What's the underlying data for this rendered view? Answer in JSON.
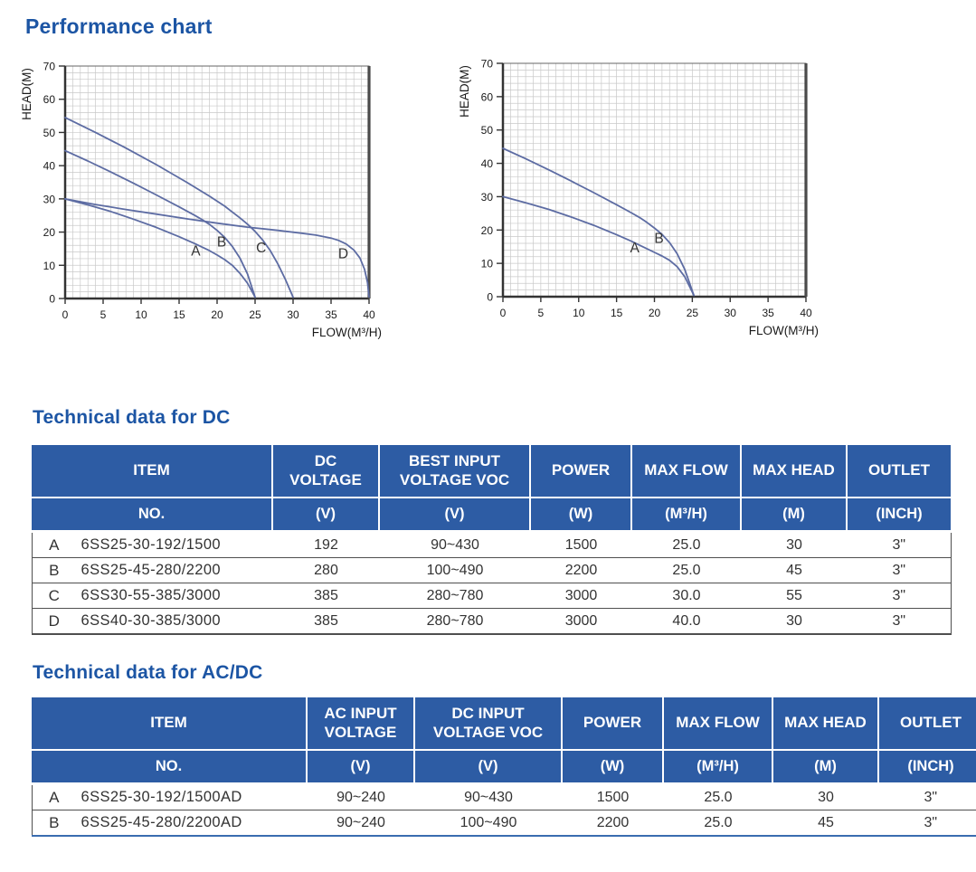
{
  "page": {
    "title": "Performance chart"
  },
  "colors": {
    "accent_blue": "#1c55a4",
    "table_header_blue": "#2d5ca4",
    "curve_blue": "#5d6ca3",
    "grid_gray": "#c9c9c9",
    "axis_dark": "#3a3a3a",
    "acdc_bottom_border": "#3a6cb0"
  },
  "chart_data": [
    {
      "type": "line",
      "title": "",
      "xlabel": "FLOW(M³/H)",
      "ylabel": "HEAD(M)",
      "xlim": [
        0,
        40
      ],
      "ylim": [
        0,
        70
      ],
      "xticks": [
        0,
        5,
        10,
        15,
        20,
        25,
        30,
        35,
        40
      ],
      "yticks": [
        0,
        10,
        20,
        30,
        40,
        50,
        60,
        70
      ],
      "grid": true,
      "minor_x_step": 1,
      "minor_y_step": 2,
      "series": [
        {
          "name": "A",
          "points": [
            [
              0,
              30
            ],
            [
              3,
              28.2
            ],
            [
              6,
              26.2
            ],
            [
              9,
              23.9
            ],
            [
              12,
              21.4
            ],
            [
              15,
              18.6
            ],
            [
              17,
              16.6
            ],
            [
              18,
              15.5
            ],
            [
              19,
              14.4
            ],
            [
              20,
              13.1
            ],
            [
              21,
              11.7
            ],
            [
              22,
              10
            ],
            [
              23,
              7.6
            ],
            [
              24,
              4.6
            ],
            [
              25,
              0.4
            ]
          ]
        },
        {
          "name": "B",
          "points": [
            [
              0,
              44.5
            ],
            [
              3,
              41.4
            ],
            [
              6,
              38.1
            ],
            [
              9,
              34.7
            ],
            [
              12,
              31.2
            ],
            [
              15,
              27.6
            ],
            [
              17,
              25.1
            ],
            [
              18,
              23.8
            ],
            [
              19,
              22.3
            ],
            [
              20,
              20.5
            ],
            [
              21,
              18.4
            ],
            [
              22,
              15.7
            ],
            [
              23,
              12.2
            ],
            [
              24,
              7.4
            ],
            [
              25,
              0.4
            ]
          ]
        },
        {
          "name": "C",
          "points": [
            [
              0,
              54.5
            ],
            [
              4,
              50
            ],
            [
              8,
              45.3
            ],
            [
              12,
              40.3
            ],
            [
              16,
              35
            ],
            [
              19,
              30.8
            ],
            [
              21,
              27.8
            ],
            [
              23,
              24.3
            ],
            [
              24,
              22.4
            ],
            [
              25,
              20.2
            ],
            [
              26,
              17.6
            ],
            [
              27,
              14.4
            ],
            [
              28,
              10.4
            ],
            [
              29,
              5.7
            ],
            [
              30,
              0.4
            ]
          ]
        },
        {
          "name": "D",
          "points": [
            [
              0,
              30
            ],
            [
              4,
              28.3
            ],
            [
              8,
              26.8
            ],
            [
              12,
              25.4
            ],
            [
              16,
              24
            ],
            [
              20,
              22.7
            ],
            [
              24,
              21.5
            ],
            [
              28,
              20.5
            ],
            [
              31,
              19.7
            ],
            [
              33,
              19.1
            ],
            [
              35,
              18.2
            ],
            [
              36,
              17.5
            ],
            [
              37,
              16.4
            ],
            [
              38,
              14.6
            ],
            [
              38.8,
              12.2
            ],
            [
              39.4,
              8.8
            ],
            [
              39.8,
              4.8
            ],
            [
              40,
              0.5
            ]
          ]
        }
      ],
      "curve_labels": [
        {
          "text": "A",
          "x": 17.2,
          "y": 12.9
        },
        {
          "text": "B",
          "x": 20.6,
          "y": 15.7
        },
        {
          "text": "C",
          "x": 25.8,
          "y": 13.9
        },
        {
          "text": "D",
          "x": 36.6,
          "y": 12.1
        }
      ]
    },
    {
      "type": "line",
      "title": "",
      "xlabel": "FLOW(M³/H)",
      "ylabel": "HEAD(M)",
      "xlim": [
        0,
        40
      ],
      "ylim": [
        0,
        70
      ],
      "xticks": [
        0,
        5,
        10,
        15,
        20,
        25,
        30,
        35,
        40
      ],
      "yticks": [
        0,
        10,
        20,
        30,
        40,
        50,
        60,
        70
      ],
      "grid": true,
      "minor_x_step": 1,
      "minor_y_step": 2,
      "series": [
        {
          "name": "A",
          "points": [
            [
              0,
              30
            ],
            [
              3,
              28.2
            ],
            [
              6,
              26.2
            ],
            [
              9,
              23.9
            ],
            [
              12,
              21.4
            ],
            [
              15,
              18.6
            ],
            [
              17,
              16.6
            ],
            [
              18,
              15.5
            ],
            [
              19,
              14.4
            ],
            [
              20,
              13.3
            ],
            [
              21,
              12.2
            ],
            [
              22,
              10.9
            ],
            [
              23,
              9
            ],
            [
              24,
              6
            ],
            [
              25.2,
              0.4
            ]
          ]
        },
        {
          "name": "B",
          "points": [
            [
              0,
              44.5
            ],
            [
              3,
              41.4
            ],
            [
              6,
              38.1
            ],
            [
              9,
              34.7
            ],
            [
              12,
              31.2
            ],
            [
              15,
              27.6
            ],
            [
              17,
              25.1
            ],
            [
              18,
              23.8
            ],
            [
              19,
              22.3
            ],
            [
              20,
              20.6
            ],
            [
              21,
              18.7
            ],
            [
              22,
              16.2
            ],
            [
              23,
              12.9
            ],
            [
              24,
              8.2
            ],
            [
              25.2,
              0.4
            ]
          ]
        }
      ],
      "curve_labels": [
        {
          "text": "A",
          "x": 17.4,
          "y": 13.3
        },
        {
          "text": "B",
          "x": 20.6,
          "y": 16.1
        }
      ]
    }
  ],
  "sections": {
    "dc": {
      "title": "Technical data for DC",
      "header_row1": [
        "ITEM",
        "DC\nVOLTAGE",
        "BEST INPUT\nVOLTAGE VOC",
        "POWER",
        "MAX FLOW",
        "MAX HEAD",
        "OUTLET"
      ],
      "header_row2": [
        "NO.",
        "(V)",
        "(V)",
        "(W)",
        "(M³/H)",
        "(M)",
        "(INCH)"
      ],
      "rows": [
        [
          "A",
          "6SS25-30-192/1500",
          "192",
          "90~430",
          "1500",
          "25.0",
          "30",
          "3\""
        ],
        [
          "B",
          "6SS25-45-280/2200",
          "280",
          "100~490",
          "2200",
          "25.0",
          "45",
          "3\""
        ],
        [
          "C",
          "6SS30-55-385/3000",
          "385",
          "280~780",
          "3000",
          "30.0",
          "55",
          "3\""
        ],
        [
          "D",
          "6SS40-30-385/3000",
          "385",
          "280~780",
          "3000",
          "40.0",
          "30",
          "3\""
        ]
      ]
    },
    "acdc": {
      "title": "Technical data for AC/DC",
      "header_row1": [
        "ITEM",
        "AC INPUT\nVOLTAGE",
        "DC INPUT\nVOLTAGE VOC",
        "POWER",
        "MAX FLOW",
        "MAX HEAD",
        "OUTLET"
      ],
      "header_row2": [
        "NO.",
        "(V)",
        "(V)",
        "(W)",
        "(M³/H)",
        "(M)",
        "(INCH)"
      ],
      "rows": [
        [
          "A",
          "6SS25-30-192/1500AD",
          "90~240",
          "90~430",
          "1500",
          "25.0",
          "30",
          "3\""
        ],
        [
          "B",
          "6SS25-45-280/2200AD",
          "90~240",
          "100~490",
          "2200",
          "25.0",
          "45",
          "3\""
        ]
      ]
    }
  }
}
